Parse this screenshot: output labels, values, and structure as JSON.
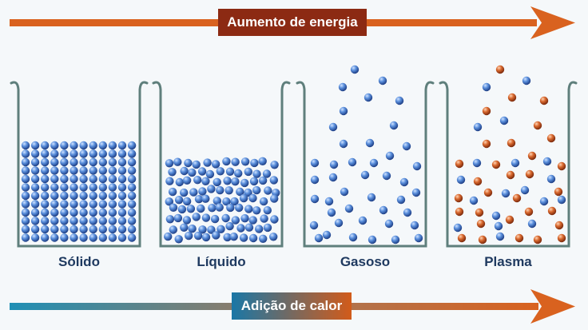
{
  "top_arrow": {
    "label": "Aumento de energia",
    "arrow_color": "#d9621f",
    "label_bg": "#8c2a13"
  },
  "bottom_arrow": {
    "label": "Adição de calor",
    "gradient_start": "#1f8fb5",
    "gradient_end": "#d9621f",
    "label_bg_start": "#1a77a6",
    "label_bg_end": "#d25b1a"
  },
  "states": [
    {
      "name": "Sólido",
      "arrangement": "lattice"
    },
    {
      "name": "Líquido",
      "arrangement": "packed"
    },
    {
      "name": "Gasoso",
      "arrangement": "dispersed"
    },
    {
      "name": "Plasma",
      "arrangement": "ionized"
    }
  ],
  "colors": {
    "particle_blue": "#4a7fd0",
    "particle_orange": "#d3632c",
    "container_stroke": "#5f7f7c",
    "label_text": "#1f3a60"
  }
}
